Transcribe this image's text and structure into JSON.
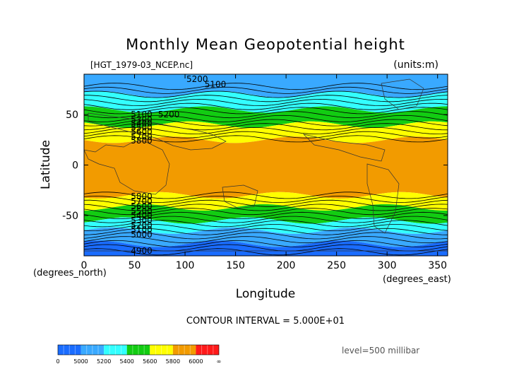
{
  "chart_data": {
    "type": "heatmap",
    "title": "Monthly Mean Geopotential height",
    "subtitle": "[HGT_1979-03_NCEP.nc]",
    "units_label": "(units:m)",
    "xlabel": "Longitude",
    "ylabel": "Latitude",
    "x_unit_label": "(degrees_east)",
    "y_unit_label": "(degrees_north)",
    "xlim": [
      0,
      360
    ],
    "ylim": [
      -90,
      90
    ],
    "x_ticks": [
      0,
      50,
      100,
      150,
      200,
      250,
      300,
      350
    ],
    "y_ticks": [
      -50,
      0,
      50
    ],
    "contour_interval_text": "CONTOUR INTERVAL = 5.000E+01",
    "level_text": "level=500 millibar",
    "colorbar": {
      "labels": [
        "0",
        "5000",
        "5200",
        "5400",
        "5600",
        "5800",
        "6000",
        "∞"
      ],
      "colors": [
        "#1a6cff",
        "#39a9ff",
        "#33ffff",
        "#12cc12",
        "#ffff00",
        "#f29b00",
        "#ff1a1a"
      ]
    },
    "bands": [
      {
        "lat_from": 90,
        "lat_to": 70,
        "range": "5000-5200",
        "color": "#39a9ff"
      },
      {
        "lat_from": 70,
        "lat_to": 55,
        "range": "5200-5400",
        "color": "#33ffff"
      },
      {
        "lat_from": 55,
        "lat_to": 40,
        "range": "5400-5600",
        "color": "#12cc12"
      },
      {
        "lat_from": 40,
        "lat_to": 25,
        "range": "5600-5800",
        "color": "#ffff00"
      },
      {
        "lat_from": 25,
        "lat_to": -30,
        "range": "5800-6000",
        "color": "#f29b00"
      },
      {
        "lat_from": -30,
        "lat_to": -42,
        "range": "5600-5800",
        "color": "#ffff00"
      },
      {
        "lat_from": -42,
        "lat_to": -55,
        "range": "5400-5600",
        "color": "#12cc12"
      },
      {
        "lat_from": -55,
        "lat_to": -65,
        "range": "5200-5400",
        "color": "#33ffff"
      },
      {
        "lat_from": -65,
        "lat_to": -78,
        "range": "5000-5200",
        "color": "#39a9ff"
      },
      {
        "lat_from": -78,
        "lat_to": -90,
        "range": "0-5000",
        "color": "#1a6cff"
      }
    ],
    "contour_labels": [
      {
        "text": "5200",
        "lon": 112,
        "lat": 85
      },
      {
        "text": "5100",
        "lon": 130,
        "lat": 80
      },
      {
        "text": "5100",
        "lon": 57,
        "lat": 50
      },
      {
        "text": "5200",
        "lon": 84,
        "lat": 50
      },
      {
        "text": "5300",
        "lon": 57,
        "lat": 45
      },
      {
        "text": "5400",
        "lon": 57,
        "lat": 41
      },
      {
        "text": "5500",
        "lon": 57,
        "lat": 37
      },
      {
        "text": "5600",
        "lon": 57,
        "lat": 33
      },
      {
        "text": "5700",
        "lon": 57,
        "lat": 28
      },
      {
        "text": "5800",
        "lon": 57,
        "lat": 24
      },
      {
        "text": "5800",
        "lon": 57,
        "lat": -31
      },
      {
        "text": "5700",
        "lon": 57,
        "lat": -36
      },
      {
        "text": "5600",
        "lon": 57,
        "lat": -41
      },
      {
        "text": "5500",
        "lon": 57,
        "lat": -46
      },
      {
        "text": "5400",
        "lon": 57,
        "lat": -50
      },
      {
        "text": "5300",
        "lon": 57,
        "lat": -55
      },
      {
        "text": "5200",
        "lon": 57,
        "lat": -60
      },
      {
        "text": "5100",
        "lon": 57,
        "lat": -64
      },
      {
        "text": "5000",
        "lon": 57,
        "lat": -69
      },
      {
        "text": "4900",
        "lon": 57,
        "lat": -85
      }
    ]
  }
}
